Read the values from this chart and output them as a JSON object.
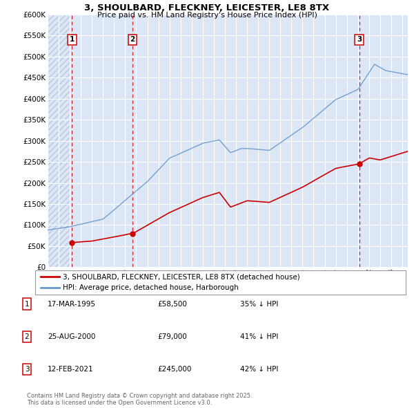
{
  "title": "3, SHOULBARD, FLECKNEY, LEICESTER, LE8 8TX",
  "subtitle": "Price paid vs. HM Land Registry's House Price Index (HPI)",
  "ylim": [
    0,
    600000
  ],
  "yticks": [
    0,
    50000,
    100000,
    150000,
    200000,
    250000,
    300000,
    350000,
    400000,
    450000,
    500000,
    550000,
    600000
  ],
  "ytick_labels": [
    "£0",
    "£50K",
    "£100K",
    "£150K",
    "£200K",
    "£250K",
    "£300K",
    "£350K",
    "£400K",
    "£450K",
    "£500K",
    "£550K",
    "£600K"
  ],
  "bg_color": "#dce6f5",
  "hatch_color": "#b8c8e0",
  "grid_color": "#ffffff",
  "line_color_red": "#cc0000",
  "line_color_blue": "#6699cc",
  "transactions": [
    {
      "date_x": 1995.21,
      "price": 58500,
      "label": "1"
    },
    {
      "date_x": 2000.65,
      "price": 79000,
      "label": "2"
    },
    {
      "date_x": 2021.12,
      "price": 245000,
      "label": "3"
    }
  ],
  "legend_entries": [
    {
      "label": "3, SHOULBARD, FLECKNEY, LEICESTER, LE8 8TX (detached house)",
      "color": "#cc0000"
    },
    {
      "label": "HPI: Average price, detached house, Harborough",
      "color": "#6699cc"
    }
  ],
  "table_rows": [
    {
      "num": "1",
      "date": "17-MAR-1995",
      "price": "£58,500",
      "pct": "35% ↓ HPI"
    },
    {
      "num": "2",
      "date": "25-AUG-2000",
      "price": "£79,000",
      "pct": "41% ↓ HPI"
    },
    {
      "num": "3",
      "date": "12-FEB-2021",
      "price": "£245,000",
      "pct": "42% ↓ HPI"
    }
  ],
  "footer": "Contains HM Land Registry data © Crown copyright and database right 2025.\nThis data is licensed under the Open Government Licence v3.0.",
  "xmin": 1993.0,
  "xmax": 2025.5,
  "hatch_end": 1995.0
}
